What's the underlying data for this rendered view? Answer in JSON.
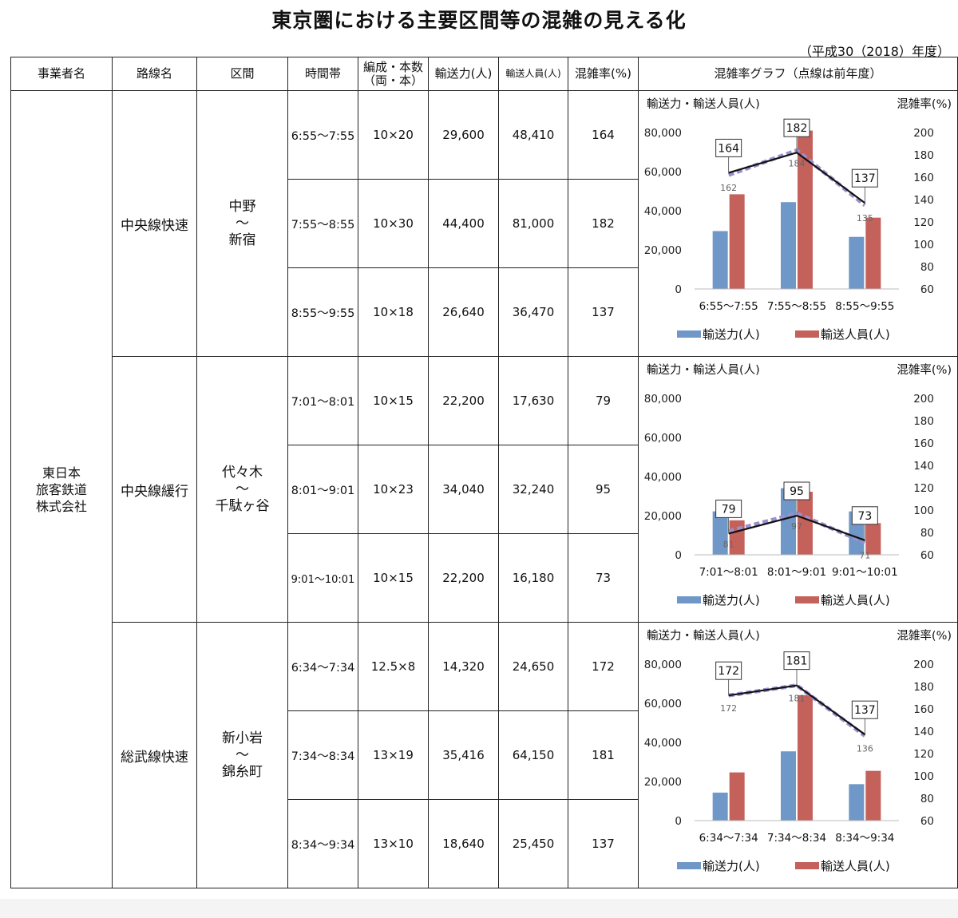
{
  "title": "東京圏における主要区間等の混雑の見える化",
  "year_note": "（平成30（2018）年度）",
  "headers": {
    "operator": "事業者名",
    "line": "路線名",
    "section": "区間",
    "time": "時間帯",
    "formation_l1": "編成・本数",
    "formation_l2": "（両・本）",
    "capacity": "輸送力(人)",
    "passengers": "輸送人員(人)",
    "rate": "混雑率(%)",
    "graph": "混雑率グラフ（点線は前年度）"
  },
  "company_lines": [
    "東日本",
    "旅客鉄道",
    "株式会社"
  ],
  "groups": [
    {
      "line": "中央線快速",
      "section_lines": [
        "中野",
        "～",
        "新宿"
      ],
      "rows": [
        {
          "time": "6:55～7:55",
          "formation": "10×20",
          "capacity": "29,600",
          "passengers": "48,410",
          "rate": "164"
        },
        {
          "time": "7:55～8:55",
          "formation": "10×30",
          "capacity": "44,400",
          "passengers": "81,000",
          "rate": "182"
        },
        {
          "time": "8:55～9:55",
          "formation": "10×18",
          "capacity": "26,640",
          "passengers": "36,470",
          "rate": "137"
        }
      ]
    },
    {
      "line": "中央線緩行",
      "section_lines": [
        "代々木",
        "～",
        "千駄ヶ谷"
      ],
      "rows": [
        {
          "time": "7:01～8:01",
          "formation": "10×15",
          "capacity": "22,200",
          "passengers": "17,630",
          "rate": "79"
        },
        {
          "time": "8:01～9:01",
          "formation": "10×23",
          "capacity": "34,040",
          "passengers": "32,240",
          "rate": "95"
        },
        {
          "time": "9:01～10:01",
          "formation": "10×15",
          "capacity": "22,200",
          "passengers": "16,180",
          "rate": "73"
        }
      ]
    },
    {
      "line": "総武線快速",
      "section_lines": [
        "新小岩",
        "～",
        "錦糸町"
      ],
      "rows": [
        {
          "time": "6:34～7:34",
          "formation": "12.5×8",
          "capacity": "14,320",
          "passengers": "24,650",
          "rate": "172"
        },
        {
          "time": "7:34～8:34",
          "formation": "13×19",
          "capacity": "35,416",
          "passengers": "64,150",
          "rate": "181"
        },
        {
          "time": "8:34～9:34",
          "formation": "13×10",
          "capacity": "18,640",
          "passengers": "25,450",
          "rate": "137"
        }
      ]
    }
  ],
  "chart_data": [
    {
      "type": "bar",
      "left_axis_label": "輸送力・輸送人員(人)",
      "right_axis_label": "混雑率(%)",
      "categories": [
        "6:55～7:55",
        "7:55～8:55",
        "8:55～9:55"
      ],
      "left_ticks": [
        "80,000",
        "60,000",
        "40,000",
        "20,000",
        "0"
      ],
      "right_ticks": [
        "200",
        "180",
        "160",
        "140",
        "120",
        "100",
        "80",
        "60"
      ],
      "ylim_left": [
        0,
        80000
      ],
      "ylim_right": [
        60,
        200
      ],
      "series": [
        {
          "name": "輸送力(人)",
          "values": [
            29600,
            44400,
            26640
          ],
          "color": "#6f97c7"
        },
        {
          "name": "輸送人員(人)",
          "values": [
            48410,
            81000,
            36470
          ],
          "color": "#c4615b"
        }
      ],
      "rate_current": [
        164,
        182,
        137
      ],
      "rate_current_labels": [
        "164",
        "182",
        "137"
      ],
      "rate_previous": [
        162,
        184,
        135
      ],
      "rate_previous_labels": [
        "162",
        "184",
        "135"
      ],
      "line_color": "#111111",
      "prev_line_color": "#9b8fcf",
      "legend_placement": "bottom"
    },
    {
      "type": "bar",
      "left_axis_label": "輸送力・輸送人員(人)",
      "right_axis_label": "混雑率(%)",
      "categories": [
        "7:01～8:01",
        "8:01～9:01",
        "9:01～10:01"
      ],
      "left_ticks": [
        "80,000",
        "60,000",
        "40,000",
        "20,000",
        "0"
      ],
      "right_ticks": [
        "200",
        "180",
        "160",
        "140",
        "120",
        "100",
        "80",
        "60"
      ],
      "ylim_left": [
        0,
        80000
      ],
      "ylim_right": [
        60,
        200
      ],
      "series": [
        {
          "name": "輸送力(人)",
          "values": [
            22200,
            34040,
            22200
          ],
          "color": "#6f97c7"
        },
        {
          "name": "輸送人員(人)",
          "values": [
            17630,
            32240,
            16180
          ],
          "color": "#c4615b"
        }
      ],
      "rate_current": [
        79,
        95,
        73
      ],
      "rate_current_labels": [
        "79",
        "95",
        "73"
      ],
      "rate_previous": [
        81,
        97,
        71
      ],
      "rate_previous_labels": [
        "81",
        "97",
        "71"
      ],
      "line_color": "#111111",
      "prev_line_color": "#9b8fcf",
      "legend_placement": "bottom"
    },
    {
      "type": "bar",
      "left_axis_label": "輸送力・輸送人員(人)",
      "right_axis_label": "混雑率(%)",
      "categories": [
        "6:34～7:34",
        "7:34～8:34",
        "8:34～9:34"
      ],
      "left_ticks": [
        "80,000",
        "60,000",
        "40,000",
        "20,000",
        "0"
      ],
      "right_ticks": [
        "200",
        "180",
        "160",
        "140",
        "120",
        "100",
        "80",
        "60"
      ],
      "ylim_left": [
        0,
        80000
      ],
      "ylim_right": [
        60,
        200
      ],
      "series": [
        {
          "name": "輸送力(人)",
          "values": [
            14320,
            35416,
            18640
          ],
          "color": "#6f97c7"
        },
        {
          "name": "輸送人員(人)",
          "values": [
            24650,
            64150,
            25450
          ],
          "color": "#c4615b"
        }
      ],
      "rate_current": [
        172,
        181,
        137
      ],
      "rate_current_labels": [
        "172",
        "181",
        "137"
      ],
      "rate_previous": [
        172,
        181,
        136
      ],
      "rate_previous_labels": [
        "172",
        "181",
        "136"
      ],
      "line_color": "#111111",
      "prev_line_color": "#9b8fcf",
      "legend_placement": "bottom"
    }
  ]
}
